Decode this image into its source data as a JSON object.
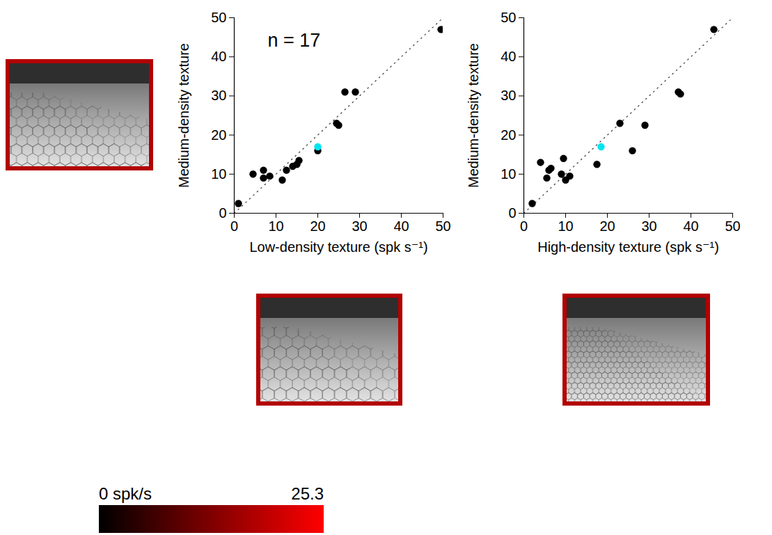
{
  "chart_data": [
    {
      "type": "scatter",
      "annotations": [
        "n = 17"
      ],
      "x_label": "Low-density texture (spk s⁻¹)",
      "y_label": "Medium-density texture",
      "x": [
        1,
        4.5,
        7,
        7,
        8.5,
        11.5,
        12.5,
        14,
        15,
        15.5,
        20,
        20,
        24.5,
        25,
        26.5,
        29,
        49.5
      ],
      "values": [
        2.5,
        10,
        11,
        9,
        9.5,
        8.5,
        11,
        12,
        12.5,
        13.5,
        16,
        17,
        23,
        22.5,
        31,
        31,
        47
      ],
      "colors": [
        "#000000",
        "#000000",
        "#000000",
        "#000000",
        "#000000",
        "#000000",
        "#000000",
        "#000000",
        "#000000",
        "#000000",
        "#000000",
        "#00e5f0",
        "#000000",
        "#000000",
        "#000000",
        "#000000",
        "#000000"
      ],
      "xlim": [
        0,
        50
      ],
      "ylim": [
        0,
        50
      ],
      "xticks": [
        0,
        10,
        20,
        30,
        40,
        50
      ],
      "yticks": [
        0,
        10,
        20,
        30,
        40,
        50
      ],
      "line_style": "dotted",
      "grid": false
    },
    {
      "type": "scatter",
      "x_label": "High-density texture (spk s⁻¹)",
      "y_label": "Medium-density texture",
      "x": [
        2,
        4,
        5.5,
        6,
        6.5,
        9,
        9.5,
        10,
        11,
        17.5,
        18.5,
        23,
        26,
        29,
        37,
        37.5,
        45.5
      ],
      "values": [
        2.5,
        13,
        9,
        11,
        11.5,
        10,
        14,
        8.5,
        9.5,
        12.5,
        17,
        23,
        16,
        22.5,
        31,
        30.5,
        47
      ],
      "colors": [
        "#000000",
        "#000000",
        "#000000",
        "#000000",
        "#000000",
        "#000000",
        "#000000",
        "#000000",
        "#000000",
        "#000000",
        "#00e5f0",
        "#000000",
        "#000000",
        "#000000",
        "#000000",
        "#000000",
        "#000000"
      ],
      "xlim": [
        0,
        50
      ],
      "ylim": [
        0,
        50
      ],
      "xticks": [
        0,
        10,
        20,
        30,
        40,
        50
      ],
      "yticks": [
        0,
        10,
        20,
        30,
        40,
        50
      ],
      "line_style": "dotted",
      "grid": false
    }
  ],
  "colorbar": {
    "range": [
      0,
      25.3
    ],
    "ticks": [
      {
        "value": 0,
        "label": "0 spk/s"
      },
      25.3
    ],
    "colors": [
      "#000000",
      "#ff0000"
    ]
  }
}
